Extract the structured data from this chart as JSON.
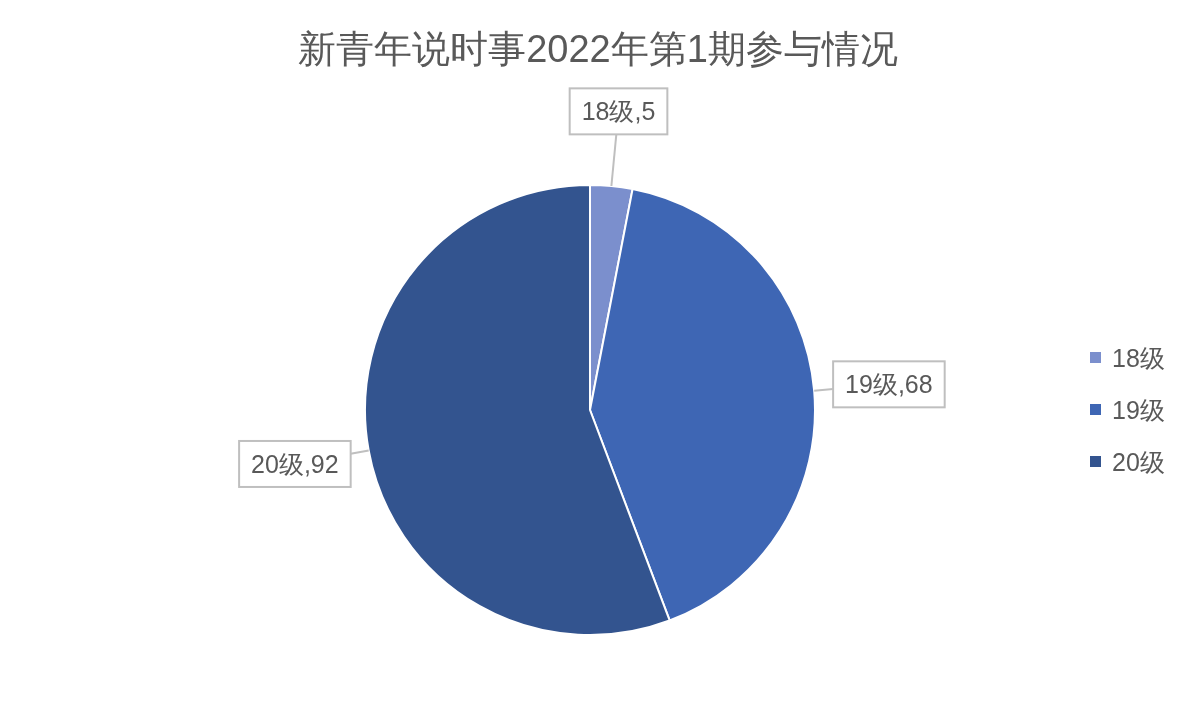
{
  "chart_data": {
    "type": "pie",
    "title": "新青年说时事2022年第1期参与情况",
    "categories": [
      "18级",
      "19级",
      "20级"
    ],
    "values": [
      5,
      68,
      92
    ],
    "colors": [
      "#7b8fcd",
      "#3e66b4",
      "#33548f"
    ],
    "value_labels": [
      "18级,5",
      "19级,68",
      "20级,92"
    ],
    "legend": "right"
  }
}
